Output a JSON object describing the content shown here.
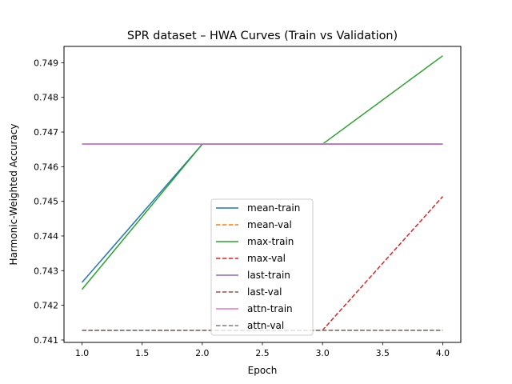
{
  "chart_data": {
    "type": "line",
    "title": "SPR dataset – HWA Curves (Train vs Validation)",
    "xlabel": "Epoch",
    "ylabel": "Harmonic-Weighted Accuracy",
    "x": [
      1,
      2,
      3,
      4
    ],
    "xlim": [
      0.85,
      4.15
    ],
    "ylim": [
      0.74093,
      0.74947
    ],
    "xticks": [
      "1.0",
      "1.5",
      "2.0",
      "2.5",
      "3.0",
      "3.5",
      "4.0"
    ],
    "yticks": [
      "0.741",
      "0.742",
      "0.743",
      "0.744",
      "0.745",
      "0.746",
      "0.747",
      "0.748",
      "0.749"
    ],
    "grid": false,
    "legend_position": "lower center",
    "series": [
      {
        "name": "mean-train",
        "color": "#1f77b4",
        "dash": "solid",
        "values": [
          0.74266,
          0.74665,
          0.74665,
          0.74665
        ]
      },
      {
        "name": "mean-val",
        "color": "#ff7f0e",
        "dash": "dashed",
        "values": [
          0.74128,
          0.74128,
          0.74128,
          0.74128
        ]
      },
      {
        "name": "max-train",
        "color": "#2ca02c",
        "dash": "solid",
        "values": [
          0.74246,
          0.74665,
          0.74665,
          0.7492
        ]
      },
      {
        "name": "max-val",
        "color": "#d62728",
        "dash": "dashed",
        "values": [
          0.74128,
          0.74128,
          0.74128,
          0.74514
        ]
      },
      {
        "name": "last-train",
        "color": "#9467bd",
        "dash": "solid",
        "values": [
          0.74665,
          0.74665,
          0.74665,
          0.74665
        ]
      },
      {
        "name": "last-val",
        "color": "#8c564b",
        "dash": "dashed",
        "values": [
          0.74128,
          0.74128,
          0.74128,
          0.74128
        ]
      },
      {
        "name": "attn-train",
        "color": "#e377c2",
        "dash": "solid",
        "values": [
          0.74666,
          0.74666,
          0.74666,
          0.74666
        ]
      },
      {
        "name": "attn-val",
        "color": "#7f7f7f",
        "dash": "dashed",
        "values": [
          0.74128,
          0.74128,
          0.74128,
          0.74128
        ]
      }
    ]
  }
}
